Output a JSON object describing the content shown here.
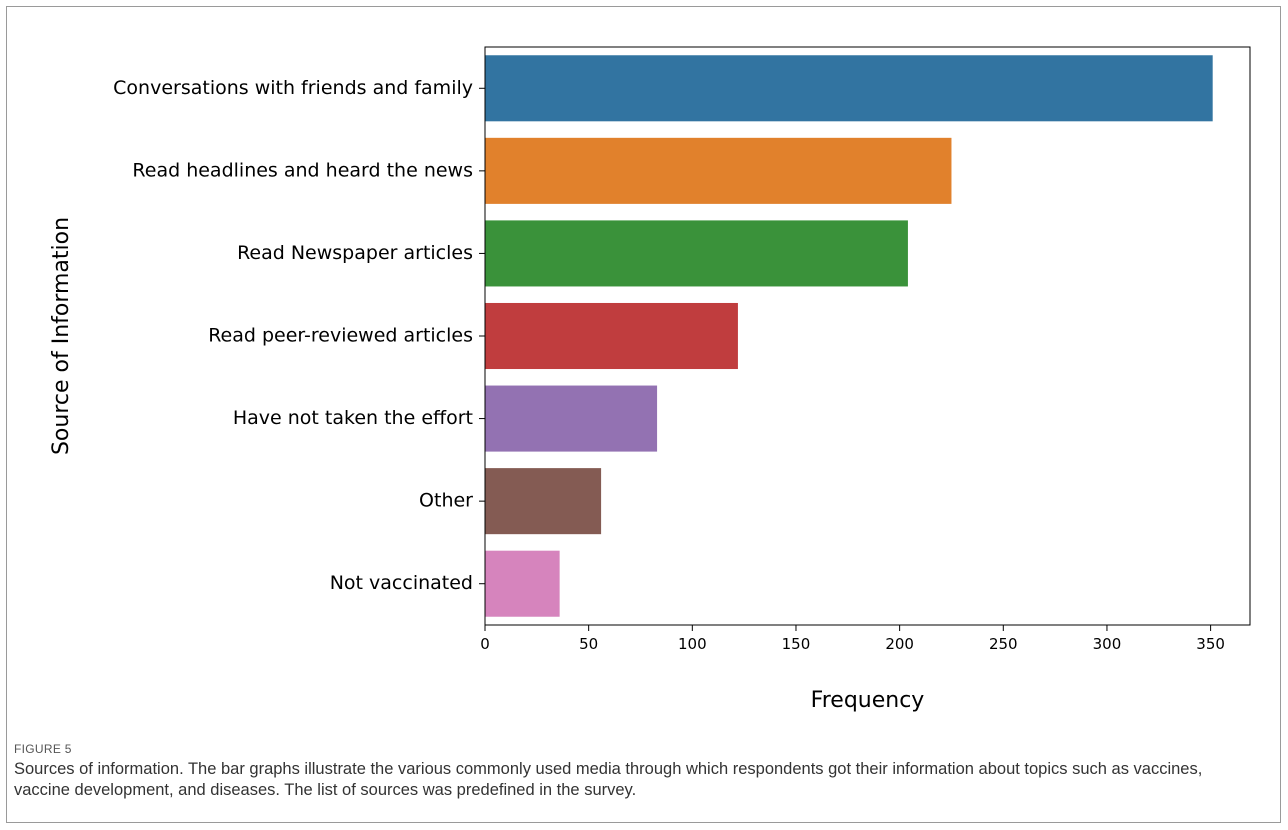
{
  "figure": {
    "label": "FIGURE 5",
    "caption": "Sources of information. The bar graphs illustrate the various commonly used media through which respondents got their information about topics such as vaccines, vaccine development, and diseases. The list of sources was predefined in the survey."
  },
  "chart_data": {
    "type": "bar",
    "orientation": "horizontal",
    "categories": [
      "Conversations with friends and family",
      "Read headlines and heard the news",
      "Read Newspaper articles",
      "Read peer-reviewed articles",
      "Have not taken the effort",
      "Other",
      "Not vaccinated"
    ],
    "values": [
      351,
      225,
      204,
      122,
      83,
      56,
      36
    ],
    "colors": [
      "#3274a1",
      "#e1812c",
      "#3a923a",
      "#c03d3e",
      "#9372b2",
      "#845b53",
      "#d684bd"
    ],
    "xlabel": "Frequency",
    "ylabel": "Source of Information",
    "xticks": [
      0,
      50,
      100,
      150,
      200,
      250,
      300,
      350
    ],
    "xlim": [
      0,
      369
    ],
    "grid": false
  }
}
